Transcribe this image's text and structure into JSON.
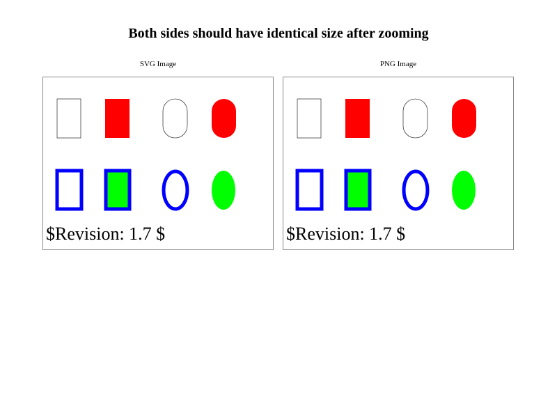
{
  "title": "Both sides should have identical size after zooming",
  "panels": [
    {
      "label": "SVG Image",
      "revision": "$Revision: 1.7 $"
    },
    {
      "label": "PNG Image",
      "revision": "$Revision: 1.7 $"
    }
  ],
  "colors": {
    "red": "#ff0000",
    "blue": "#0000ff",
    "green": "#00ff00",
    "outline": "#000000",
    "border": "#888888"
  }
}
